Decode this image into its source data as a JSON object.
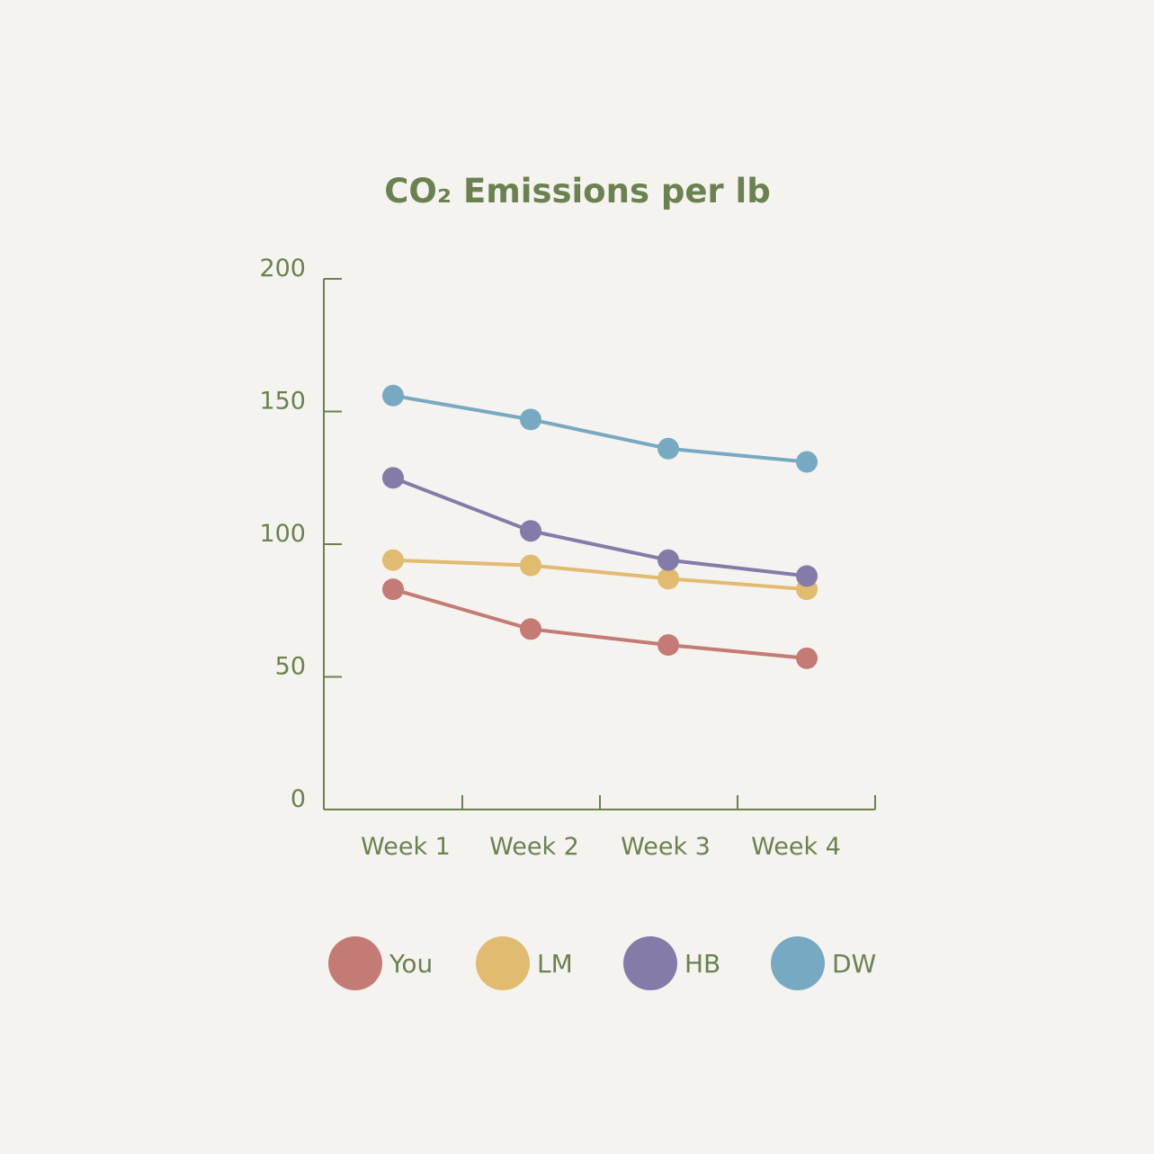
{
  "chart_data": {
    "type": "line",
    "title": "CO₂ Emissions per lb",
    "xlabel": "",
    "ylabel": "",
    "categories": [
      "Week 1",
      "Week 2",
      "Week 3",
      "Week 4"
    ],
    "y_ticks": [
      "0",
      "50",
      "100",
      "150",
      "200"
    ],
    "ylim": [
      0,
      200
    ],
    "grid": false,
    "legend_position": "bottom",
    "series": [
      {
        "name": "You",
        "color": "#c47a75",
        "values": [
          83,
          68,
          62,
          57
        ]
      },
      {
        "name": "LM",
        "color": "#e0bb70",
        "values": [
          94,
          92,
          87,
          83
        ]
      },
      {
        "name": "HB",
        "color": "#857ba8",
        "values": [
          125,
          105,
          94,
          88
        ]
      },
      {
        "name": "DW",
        "color": "#78a9c3",
        "values": [
          156,
          147,
          136,
          131
        ]
      }
    ],
    "axis_color": "#6b8150"
  }
}
